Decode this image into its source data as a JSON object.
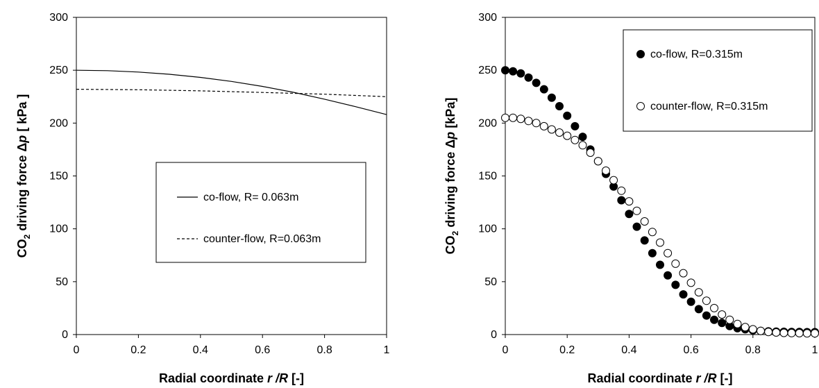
{
  "chart_data": [
    {
      "type": "line",
      "title": "",
      "xlabel": {
        "prefix": "Radial coordinate ",
        "italic": "r /R",
        "suffix": " [-]"
      },
      "ylabel": {
        "prefix": "CO",
        "sub": "2",
        "mid": " driving force Δ",
        "italic": "p",
        "suffix": " [ kPa ]"
      },
      "xlim": [
        0,
        1
      ],
      "ylim": [
        0,
        300
      ],
      "x_ticks": [
        "0",
        "0.2",
        "0.4",
        "0.6",
        "0.8",
        "1"
      ],
      "y_ticks": [
        "0",
        "50",
        "100",
        "150",
        "200",
        "250",
        "300"
      ],
      "legend_position": "center-right",
      "series": [
        {
          "name": "co-flow, R= 0.063m",
          "style": "solid",
          "x": [
            0,
            0.1,
            0.2,
            0.3,
            0.4,
            0.5,
            0.6,
            0.7,
            0.8,
            0.9,
            1.0
          ],
          "y": [
            250,
            249.6,
            248.3,
            246.2,
            243.2,
            239.4,
            234.7,
            229.1,
            222.6,
            215.5,
            208
          ]
        },
        {
          "name": "counter-flow, R=0.063m",
          "style": "dashed",
          "x": [
            0,
            0.2,
            0.4,
            0.6,
            0.8,
            1.0
          ],
          "y": [
            232,
            231.5,
            230.5,
            229,
            227.3,
            225
          ]
        }
      ]
    },
    {
      "type": "scatter",
      "title": "",
      "xlabel": {
        "prefix": "Radial coordinate ",
        "italic": "r /R",
        "suffix": " [-]"
      },
      "ylabel": {
        "prefix": "CO",
        "sub": "2",
        "mid": " driving force Δ",
        "italic": "p",
        "suffix": " [kPa]"
      },
      "xlim": [
        0,
        1
      ],
      "ylim": [
        0,
        300
      ],
      "x_ticks": [
        "0",
        "0.2",
        "0.4",
        "0.6",
        "0.8",
        "1"
      ],
      "y_ticks": [
        "0",
        "50",
        "100",
        "150",
        "200",
        "250",
        "300"
      ],
      "legend_position": "top-right",
      "series": [
        {
          "name": "co-flow, R=0.315m",
          "marker": "filled-circle",
          "x": [
            0,
            0.025,
            0.05,
            0.075,
            0.1,
            0.125,
            0.15,
            0.175,
            0.2,
            0.225,
            0.25,
            0.275,
            0.3,
            0.325,
            0.35,
            0.375,
            0.4,
            0.425,
            0.45,
            0.475,
            0.5,
            0.525,
            0.55,
            0.575,
            0.6,
            0.625,
            0.65,
            0.675,
            0.7,
            0.725,
            0.75,
            0.775,
            0.8,
            0.825,
            0.85,
            0.875,
            0.9,
            0.925,
            0.95,
            0.975,
            1.0
          ],
          "y": [
            250,
            249,
            247,
            243,
            238,
            232,
            224,
            216,
            207,
            197,
            187,
            175,
            164,
            152,
            140,
            127,
            114,
            102,
            89,
            77,
            66,
            56,
            47,
            38,
            31,
            24,
            18,
            14,
            11,
            8,
            6,
            5,
            4,
            3.5,
            3,
            2.8,
            2.6,
            2.5,
            2.4,
            2.3,
            2.3
          ]
        },
        {
          "name": "counter-flow, R=0.315m",
          "marker": "open-circle",
          "x": [
            0,
            0.025,
            0.05,
            0.075,
            0.1,
            0.125,
            0.15,
            0.175,
            0.2,
            0.225,
            0.25,
            0.275,
            0.3,
            0.325,
            0.35,
            0.375,
            0.4,
            0.425,
            0.45,
            0.475,
            0.5,
            0.525,
            0.55,
            0.575,
            0.6,
            0.625,
            0.65,
            0.675,
            0.7,
            0.725,
            0.75,
            0.775,
            0.8,
            0.825,
            0.85,
            0.875,
            0.9,
            0.925,
            0.95,
            0.975,
            1.0
          ],
          "y": [
            205,
            205,
            204,
            202,
            200,
            197,
            194,
            191,
            188,
            184,
            179,
            172,
            164,
            155,
            146,
            136,
            126,
            117,
            107,
            97,
            87,
            77,
            67,
            58,
            49,
            40,
            32,
            25,
            19,
            14,
            10,
            7,
            5,
            3.5,
            2.5,
            2,
            1.6,
            1.4,
            1.3,
            1.2,
            1.2
          ]
        }
      ]
    }
  ]
}
